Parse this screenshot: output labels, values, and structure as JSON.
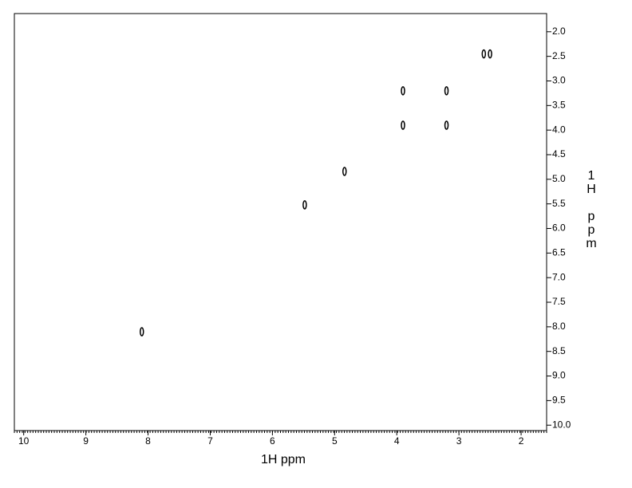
{
  "chart_data": {
    "type": "scatter",
    "x_label": "1H ppm",
    "y_label": "1H ppm",
    "x": [
      8.1,
      5.48,
      4.84,
      3.9,
      3.2,
      3.9,
      3.2,
      2.6,
      2.5
    ],
    "values": [
      8.1,
      5.52,
      4.84,
      3.2,
      3.2,
      3.9,
      3.9,
      2.45,
      2.45
    ],
    "color": "#000000",
    "xlim": [
      10.15,
      1.59
    ],
    "ylim": [
      1.63,
      10.11
    ],
    "xticks": [
      10,
      9,
      8,
      7,
      6,
      5,
      4,
      3,
      2
    ],
    "yticks": [
      {
        "value": 2,
        "label": "2.0"
      },
      2.5,
      {
        "value": 3,
        "label": "3.0"
      },
      3.5,
      {
        "value": 4,
        "label": "4.0"
      },
      4.5,
      {
        "value": 5,
        "label": "5.0"
      },
      5.5,
      {
        "value": 6,
        "label": "6.0"
      },
      6.5,
      {
        "value": 7,
        "label": "7.0"
      },
      7.5,
      {
        "value": 8,
        "label": "8.0"
      },
      8.5,
      {
        "value": 9,
        "label": "9.0"
      },
      9.5,
      {
        "value": 10,
        "label": "10.0"
      }
    ]
  }
}
